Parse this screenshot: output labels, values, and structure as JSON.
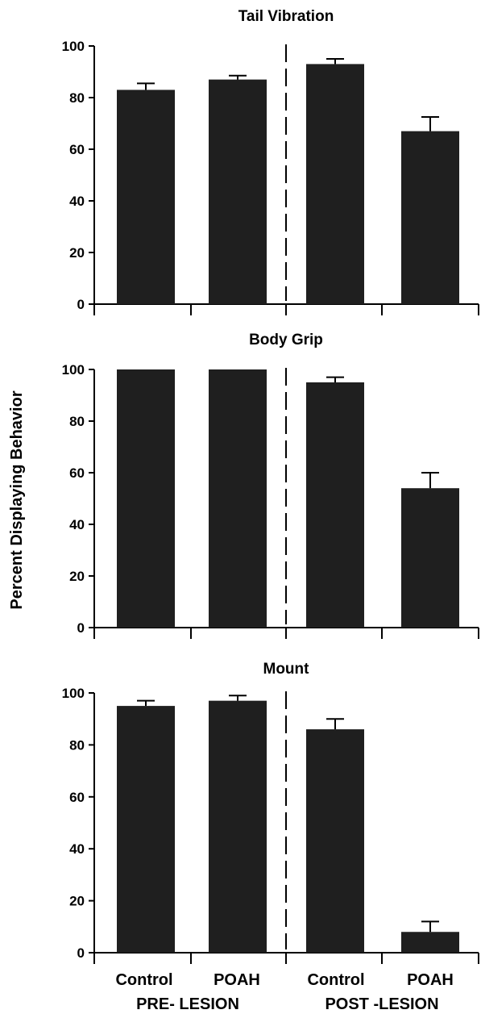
{
  "figure": {
    "ylabel": "Percent Displaying Behavior",
    "group_labels": [
      "PRE- LESION",
      "POST -LESION"
    ],
    "category_labels": [
      "Control",
      "POAH",
      "Control",
      "POAH"
    ]
  },
  "chart_data": [
    {
      "type": "bar",
      "title": "Tail Vibration",
      "categories": [
        "Control",
        "POAH",
        "Control",
        "POAH"
      ],
      "groups": [
        "PRE- LESION",
        "PRE- LESION",
        "POST -LESION",
        "POST -LESION"
      ],
      "values": [
        83,
        87,
        93,
        67
      ],
      "errors": [
        2.5,
        1.5,
        2,
        5.5
      ],
      "ylim": [
        0,
        100
      ],
      "yticks": [
        0,
        20,
        40,
        60,
        80,
        100
      ],
      "ylabel": "Percent Displaying Behavior",
      "color": "#1f1f1f"
    },
    {
      "type": "bar",
      "title": "Body Grip",
      "categories": [
        "Control",
        "POAH",
        "Control",
        "POAH"
      ],
      "groups": [
        "PRE- LESION",
        "PRE- LESION",
        "POST -LESION",
        "POST -LESION"
      ],
      "values": [
        100,
        100,
        95,
        54
      ],
      "errors": [
        0,
        0,
        2,
        6
      ],
      "ylim": [
        0,
        100
      ],
      "yticks": [
        0,
        20,
        40,
        60,
        80,
        100
      ],
      "ylabel": "Percent Displaying Behavior",
      "color": "#1f1f1f"
    },
    {
      "type": "bar",
      "title": "Mount",
      "categories": [
        "Control",
        "POAH",
        "Control",
        "POAH"
      ],
      "groups": [
        "PRE- LESION",
        "PRE- LESION",
        "POST -LESION",
        "POST -LESION"
      ],
      "values": [
        95,
        97,
        86,
        8
      ],
      "errors": [
        2,
        2,
        4,
        4
      ],
      "ylim": [
        0,
        100
      ],
      "yticks": [
        0,
        20,
        40,
        60,
        80,
        100
      ],
      "ylabel": "Percent Displaying Behavior",
      "color": "#1f1f1f"
    }
  ]
}
